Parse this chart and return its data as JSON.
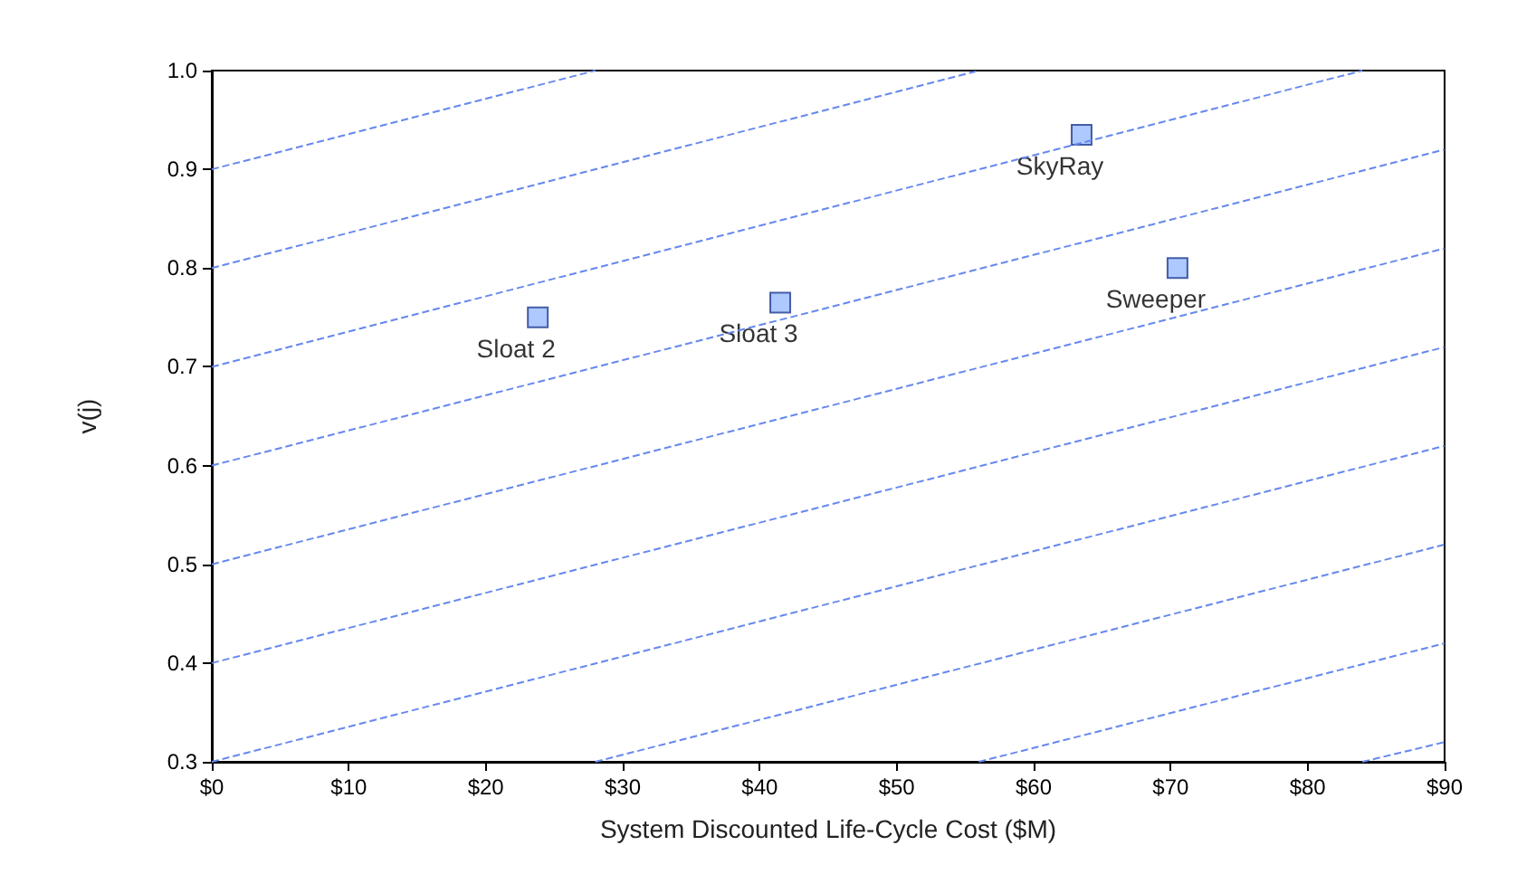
{
  "chart_data": {
    "type": "scatter",
    "xlabel": "System Discounted Life-Cycle Cost ($M)",
    "ylabel": "v(j)",
    "xlim": [
      0,
      90
    ],
    "ylim": [
      0.3,
      1.0
    ],
    "xticks": [
      {
        "value": 0,
        "label": "$0"
      },
      {
        "value": 10,
        "label": "$10"
      },
      {
        "value": 20,
        "label": "$20"
      },
      {
        "value": 30,
        "label": "$30"
      },
      {
        "value": 40,
        "label": "$40"
      },
      {
        "value": 50,
        "label": "$50"
      },
      {
        "value": 60,
        "label": "$60"
      },
      {
        "value": 70,
        "label": "$70"
      },
      {
        "value": 80,
        "label": "$80"
      },
      {
        "value": 90,
        "label": "$90"
      }
    ],
    "yticks": [
      0.3,
      0.4,
      0.5,
      0.6,
      0.7,
      0.8,
      0.9,
      {
        "value": 1,
        "label": "1.0"
      }
    ],
    "grid": false,
    "series": [
      {
        "type": "line",
        "color": "#6688ee",
        "line_style": "dashed",
        "marker": "none",
        "x": [
          0,
          28
        ],
        "values": [
          0.9,
          1.0
        ]
      },
      {
        "type": "line",
        "color": "#6688ee",
        "line_style": "dashed",
        "marker": "none",
        "x": [
          0,
          56
        ],
        "values": [
          0.8,
          1.0
        ]
      },
      {
        "type": "line",
        "color": "#6688ee",
        "line_style": "dashed",
        "marker": "none",
        "x": [
          0,
          84
        ],
        "values": [
          0.7,
          1.0
        ]
      },
      {
        "type": "line",
        "color": "#6688ee",
        "line_style": "dashed",
        "marker": "none",
        "x": [
          0,
          90
        ],
        "values": [
          0.6,
          0.92
        ]
      },
      {
        "type": "line",
        "color": "#6688ee",
        "line_style": "dashed",
        "marker": "none",
        "x": [
          0,
          90
        ],
        "values": [
          0.5,
          0.82
        ]
      },
      {
        "type": "line",
        "color": "#6688ee",
        "line_style": "dashed",
        "marker": "none",
        "x": [
          0,
          90
        ],
        "values": [
          0.4,
          0.72
        ]
      },
      {
        "type": "line",
        "color": "#6688ee",
        "line_style": "dashed",
        "marker": "none",
        "x": [
          0,
          90
        ],
        "values": [
          0.3,
          0.62
        ]
      },
      {
        "type": "line",
        "color": "#6688ee",
        "line_style": "dashed",
        "marker": "none",
        "x": [
          28,
          90
        ],
        "values": [
          0.3,
          0.52
        ]
      },
      {
        "type": "line",
        "color": "#6688ee",
        "line_style": "dashed",
        "marker": "none",
        "x": [
          56,
          90
        ],
        "values": [
          0.3,
          0.42
        ]
      },
      {
        "type": "line",
        "color": "#6688ee",
        "line_style": "dashed",
        "marker": "none",
        "x": [
          84,
          90
        ],
        "values": [
          0.3,
          0.32
        ]
      },
      {
        "color": "#99bbff",
        "marker": "square",
        "x": [
          23.8,
          41.5,
          63.5,
          70.5
        ],
        "values": [
          0.75,
          0.765,
          0.935,
          0.8
        ]
      }
    ],
    "annotations": [
      {
        "text": "Sloat 2",
        "x": 23.8,
        "y": 0.75
      },
      {
        "text": "Sloat 3",
        "x": 41.5,
        "y": 0.765
      },
      {
        "text": "SkyRay",
        "x": 63.5,
        "y": 0.935
      },
      {
        "text": "Sweeper",
        "x": 70.5,
        "y": 0.8
      }
    ]
  }
}
